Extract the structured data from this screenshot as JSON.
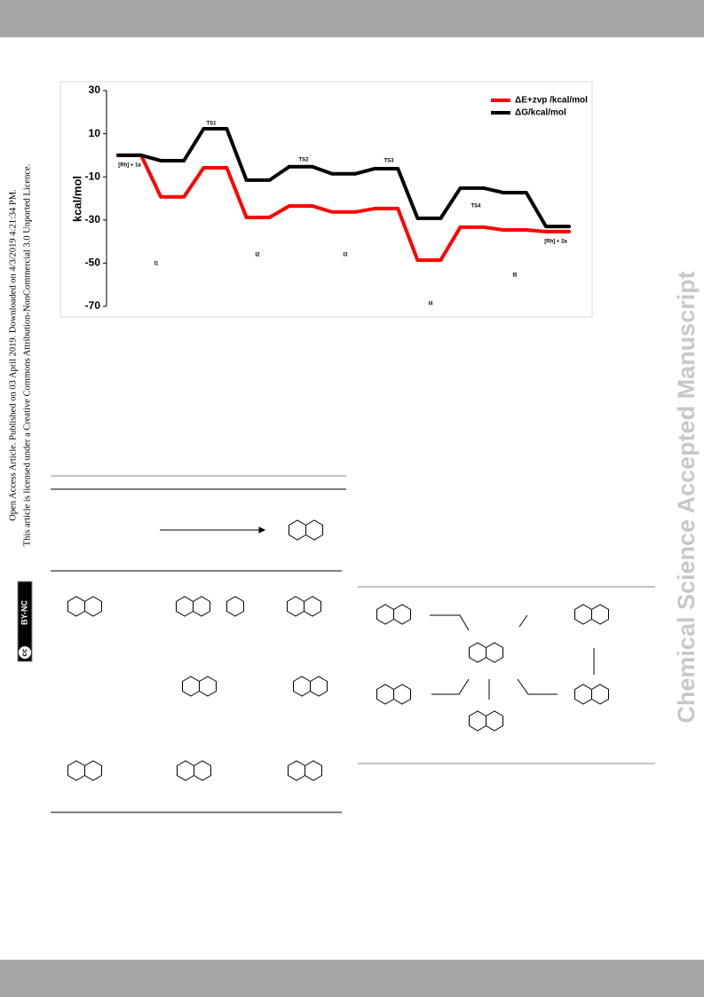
{
  "sidebar": {
    "line1": "Open Access Article. Published on 03 April 2019. Downloaded on 4/3/2019 4:21:34 PM.",
    "line2": "This article is licensed under a Creative Commons Attribution-NonCommercial 3.0 Unported Licence.",
    "badge_cc": "cc",
    "badge_text": "BY-NC"
  },
  "watermark": "Chemical Science Accepted Manuscript",
  "chart_data": {
    "type": "line",
    "ylabel": "kcal/mol",
    "categories": [
      "[Rh] + 1a",
      "I1",
      "TS1",
      "I2",
      "TS2",
      "I3",
      "TS3",
      "I4",
      "TS4",
      "I5",
      "[Rh] + 2a"
    ],
    "series": [
      {
        "name": "ΔE+zvp /kcal/mol",
        "color": "#ff0000",
        "values": [
          0,
          -19.3,
          -5.8,
          -28.8,
          -23.5,
          -26.3,
          -24.7,
          -48.6,
          -33.3,
          -34.6,
          -35.4
        ]
      },
      {
        "name": "ΔG/kcal/mol",
        "color": "#000000",
        "values": [
          0,
          -2.5,
          12.3,
          -11.5,
          -5.3,
          -8.6,
          -6.2,
          -29.2,
          -15.2,
          -17.3,
          -33
        ]
      }
    ],
    "ylim": [
      -70,
      30
    ],
    "yticks": [
      -70,
      -50,
      -30,
      -10,
      10,
      30
    ],
    "legend": "upper right"
  }
}
